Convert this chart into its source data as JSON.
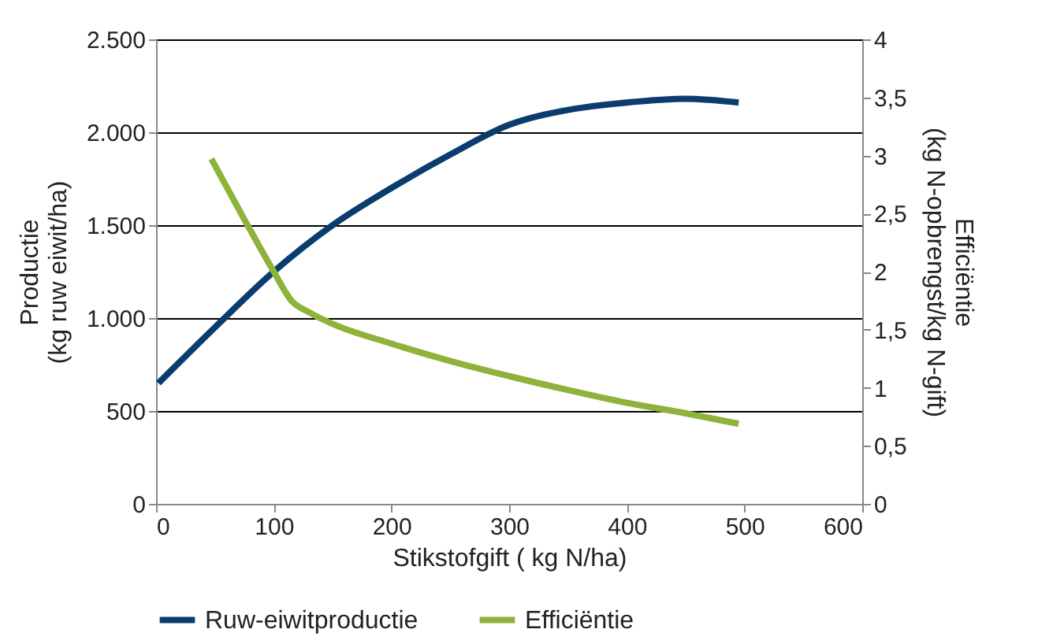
{
  "chart_data": {
    "type": "line",
    "xlabel": "Stikstofgift ( kg N/ha)",
    "ylabel": "Productie (kg ruw eiwit/ha)",
    "y2label": "Efficiëntie (kg N-opbrengst/kg N-gift)",
    "series": [
      {
        "name": "Ruw-eiwitproductie",
        "color": "#0a3d6e",
        "x": [
          2,
          50,
          100,
          150,
          200,
          250,
          300,
          350,
          400,
          450,
          495
        ],
        "values": [
          650,
          950,
          1250,
          1500,
          1700,
          1880,
          2040,
          2120,
          2160,
          2180,
          2160
        ]
      },
      {
        "name": "Efficiëntie",
        "color": "#8db33a",
        "axis": "y2",
        "x": [
          47,
          75,
          100,
          115,
          130,
          150,
          200,
          250,
          300,
          350,
          400,
          450,
          495
        ],
        "values": [
          2.97,
          2.45,
          2.0,
          1.75,
          1.65,
          1.55,
          1.38,
          1.23,
          1.1,
          0.98,
          0.87,
          0.78,
          0.69
        ]
      }
    ],
    "xlim": [
      0,
      600
    ],
    "xticks": [
      0,
      100,
      200,
      300,
      400,
      500,
      600
    ],
    "ylim": [
      0,
      2500
    ],
    "yticks": [
      0,
      {
        "value": 500,
        "label": "500"
      },
      {
        "value": 1000,
        "label": "1.000"
      },
      {
        "value": 1500,
        "label": "1.500"
      },
      {
        "value": 2000,
        "label": "2.000"
      },
      {
        "value": 2500,
        "label": "2.500"
      }
    ],
    "y2lim": [
      0,
      4
    ],
    "y2ticks": [
      0,
      {
        "value": 0.5,
        "label": "0,5"
      },
      1,
      {
        "value": 1.5,
        "label": "1,5"
      },
      2,
      {
        "value": 2.5,
        "label": "2,5"
      },
      3,
      {
        "value": 3.5,
        "label": "3,5"
      },
      4
    ],
    "grid": "y",
    "legend": "bottom",
    "line_style": "solid"
  }
}
